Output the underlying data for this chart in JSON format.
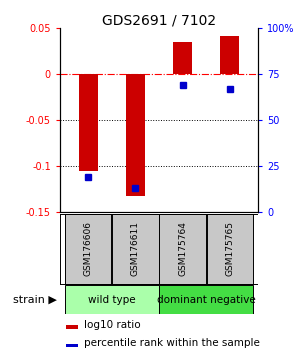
{
  "title": "GDS2691 / 7102",
  "samples": [
    "GSM176606",
    "GSM176611",
    "GSM175764",
    "GSM175765"
  ],
  "log10_ratio": [
    -0.105,
    -0.132,
    0.035,
    0.042
  ],
  "percentile_rank": [
    19,
    13,
    69,
    67
  ],
  "ylim_left": [
    -0.15,
    0.05
  ],
  "ylim_right": [
    0,
    100
  ],
  "yticks_left": [
    -0.15,
    -0.1,
    -0.05,
    0.0,
    0.05
  ],
  "yticks_right": [
    0,
    25,
    50,
    75,
    100
  ],
  "ytick_labels_left": [
    "-0.15",
    "-0.1",
    "-0.05",
    "0",
    "0.05"
  ],
  "ytick_labels_right": [
    "0",
    "25",
    "50",
    "75",
    "100%"
  ],
  "bar_color": "#CC0000",
  "dot_color": "#0000CC",
  "legend_bar_label": "log10 ratio",
  "legend_dot_label": "percentile rank within the sample",
  "strain_label": "strain",
  "sample_box_color": "#C8C8C8",
  "wild_type_color": "#aaffaa",
  "dominant_neg_color": "#44dd44",
  "group_border_color": "#000000",
  "figsize": [
    3.0,
    3.54
  ],
  "dpi": 100
}
